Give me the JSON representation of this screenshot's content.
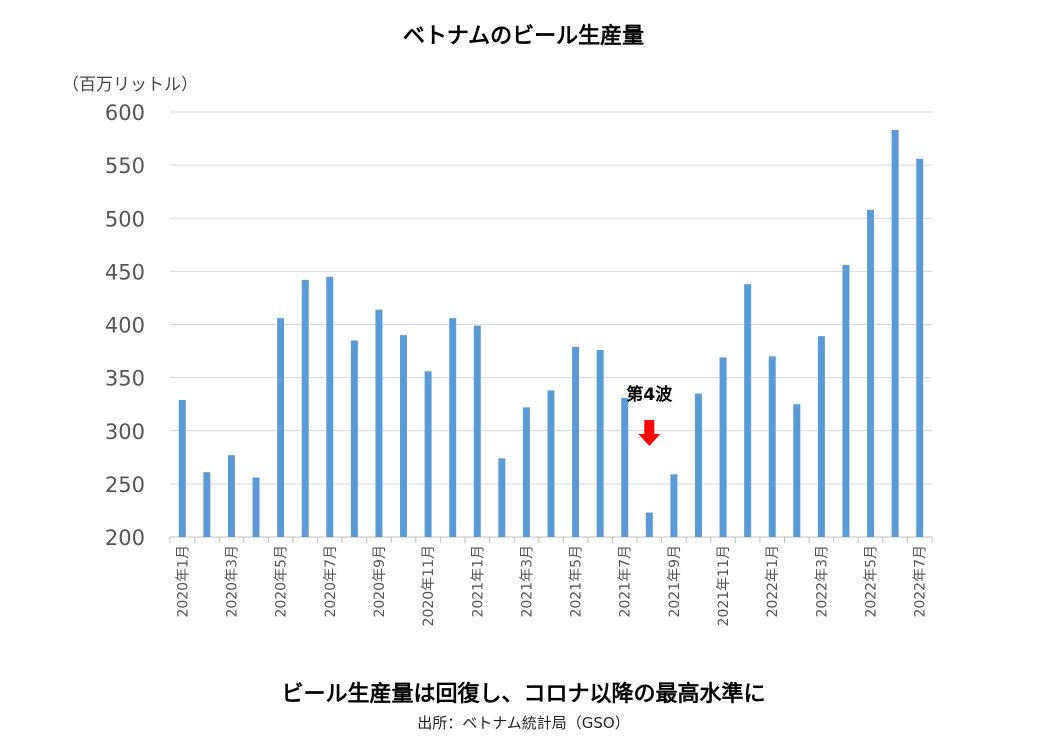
{
  "title": "ベトナムのビール生産量",
  "unit_label": "（百万リットル）",
  "subtitle": "ビール生産量は回復し、コロナ以降の最高水準に",
  "source": "出所：ベトナム統計局（GSO）",
  "colors": {
    "bar": "#5b9bd5",
    "grid": "#d9d9d9",
    "axis": "#bfbfbf",
    "arrow": "#ff0000"
  },
  "chart_data": {
    "type": "bar",
    "title": "ベトナムのビール生産量",
    "ylabel": "（百万リットル）",
    "ylim": [
      200,
      600
    ],
    "yticks": [
      200,
      250,
      300,
      350,
      400,
      450,
      500,
      550,
      600
    ],
    "grid": true,
    "categories": [
      "2020年1月",
      "2020年2月",
      "2020年3月",
      "2020年4月",
      "2020年5月",
      "2020年6月",
      "2020年7月",
      "2020年8月",
      "2020年9月",
      "2020年10月",
      "2020年11月",
      "2020年12月",
      "2021年1月",
      "2021年2月",
      "2021年3月",
      "2021年4月",
      "2021年5月",
      "2021年6月",
      "2021年7月",
      "2021年8月",
      "2021年9月",
      "2021年10月",
      "2021年11月",
      "2021年12月",
      "2022年1月",
      "2022年2月",
      "2022年3月",
      "2022年4月",
      "2022年5月",
      "2022年6月",
      "2022年7月"
    ],
    "shown_tick_labels": [
      "2020年1月",
      "2020年3月",
      "2020年5月",
      "2020年7月",
      "2020年9月",
      "2020年11月",
      "2021年1月",
      "2021年3月",
      "2021年5月",
      "2021年7月",
      "2021年9月",
      "2021年11月",
      "2022年1月",
      "2022年3月",
      "2022年5月",
      "2022年7月"
    ],
    "values": [
      329,
      261,
      277,
      256,
      406,
      442,
      445,
      385,
      414,
      390,
      356,
      406,
      399,
      274,
      322,
      338,
      379,
      376,
      331,
      223,
      259,
      335,
      369,
      438,
      370,
      325,
      389,
      456,
      508,
      583,
      556
    ],
    "annotation": {
      "text": "第4波",
      "category": "2021年8月"
    }
  }
}
